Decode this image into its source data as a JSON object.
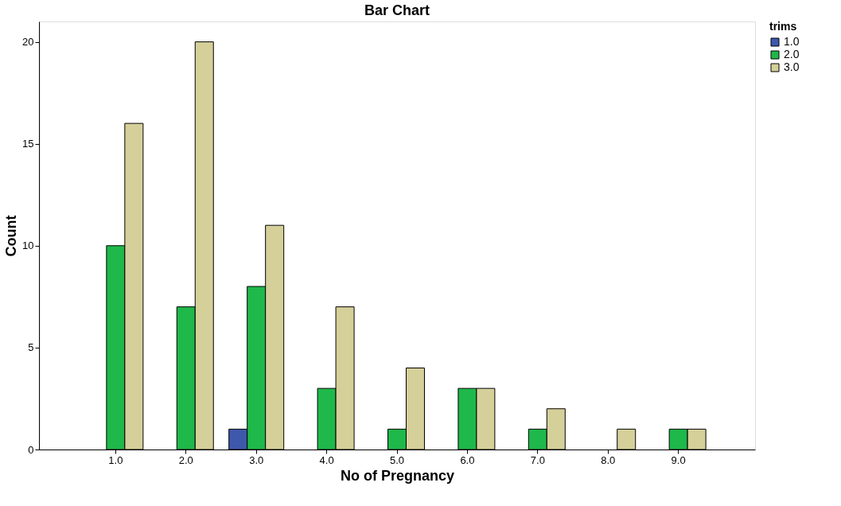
{
  "chart_data": {
    "type": "bar",
    "title": "Bar Chart",
    "xlabel": "No of Pregnancy",
    "ylabel": "Count",
    "legend_title": "trims",
    "categories": [
      "1.0",
      "2.0",
      "3.0",
      "4.0",
      "5.0",
      "6.0",
      "7.0",
      "8.0",
      "9.0"
    ],
    "series": [
      {
        "name": "1.0",
        "color": "#3e58ac",
        "values": [
          null,
          null,
          1,
          null,
          null,
          null,
          null,
          null,
          null
        ]
      },
      {
        "name": "2.0",
        "color": "#1fb84a",
        "values": [
          10,
          7,
          8,
          3,
          1,
          3,
          1,
          null,
          1
        ]
      },
      {
        "name": "3.0",
        "color": "#d5cf99",
        "values": [
          16,
          20,
          11,
          7,
          4,
          3,
          2,
          1,
          1
        ]
      }
    ],
    "ylim": [
      0,
      21
    ],
    "yticks": [
      0,
      5,
      10,
      15,
      20
    ],
    "grid": false,
    "legend": "top right"
  }
}
